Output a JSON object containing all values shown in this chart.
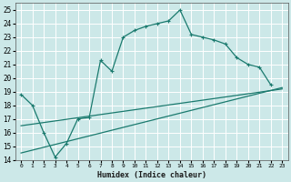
{
  "xlabel": "Humidex (Indice chaleur)",
  "bg_color": "#cce8e8",
  "grid_color": "#ffffff",
  "line_color": "#1a7a6e",
  "xlim": [
    -0.5,
    23.5
  ],
  "ylim": [
    14,
    25.5
  ],
  "xticks": [
    0,
    1,
    2,
    3,
    4,
    5,
    6,
    7,
    8,
    9,
    10,
    11,
    12,
    13,
    14,
    15,
    16,
    17,
    18,
    19,
    20,
    21,
    22,
    23
  ],
  "yticks": [
    14,
    15,
    16,
    17,
    18,
    19,
    20,
    21,
    22,
    23,
    24,
    25
  ],
  "series1_x": [
    0,
    1,
    2,
    3,
    4,
    5,
    6,
    7,
    8,
    9,
    10,
    11,
    12,
    13,
    14,
    15,
    16,
    17,
    18,
    19,
    20,
    21,
    22
  ],
  "series1_y": [
    18.8,
    18.0,
    16.0,
    14.2,
    15.2,
    17.0,
    17.1,
    21.3,
    20.5,
    23.0,
    23.5,
    23.8,
    24.0,
    24.2,
    25.0,
    23.2,
    23.0,
    22.8,
    22.5,
    21.5,
    21.0,
    20.8,
    19.5
  ],
  "series2_x": [
    0,
    23
  ],
  "series2_y": [
    16.5,
    19.2
  ],
  "series3_x": [
    0,
    23
  ],
  "series3_y": [
    14.5,
    19.3
  ]
}
